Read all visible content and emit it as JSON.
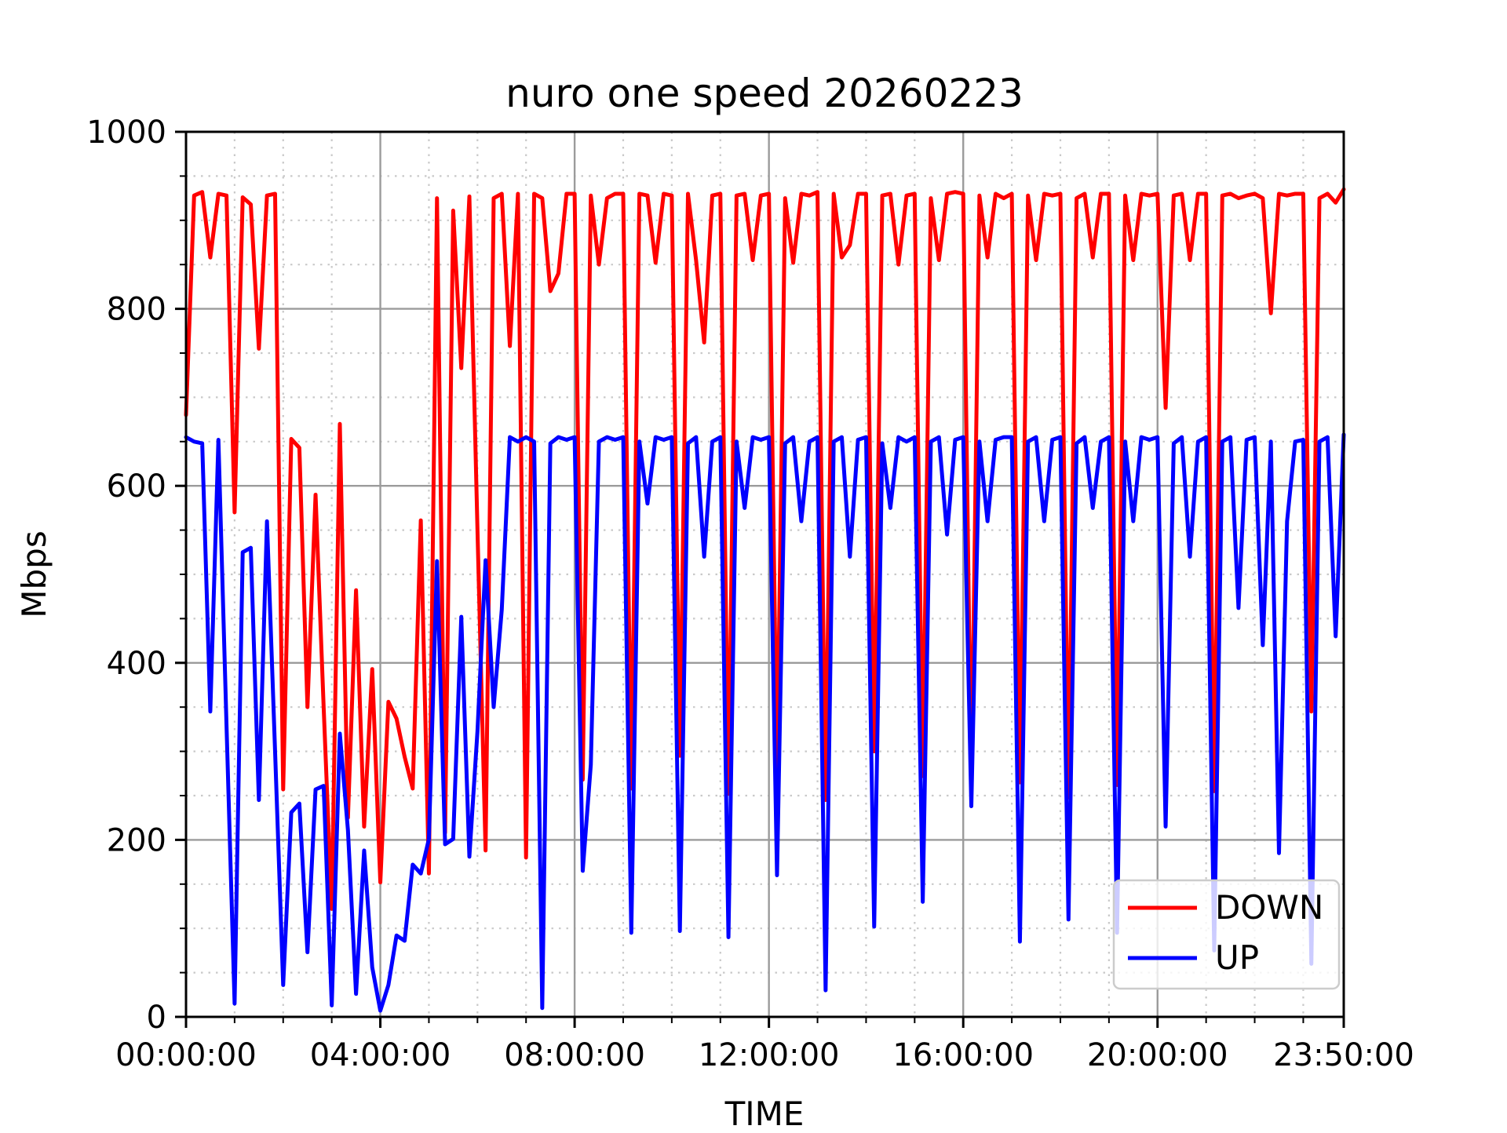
{
  "figure": {
    "title": "nuro one speed 20260223",
    "background": "#ffffff"
  },
  "chart_data": {
    "type": "line",
    "title": "nuro one speed 20260223",
    "xlabel": "TIME",
    "ylabel": "Mbps",
    "xlim_minutes": [
      0,
      1430
    ],
    "ylim": [
      0,
      1000
    ],
    "x_step_minutes": 10,
    "grid": {
      "major": true,
      "minor": true,
      "major_color": "#9b9b9b",
      "minor_color": "#c9c9c9"
    },
    "x_major_ticks": [
      {
        "minutes": 0,
        "label": "00:00:00"
      },
      {
        "minutes": 240,
        "label": "04:00:00"
      },
      {
        "minutes": 480,
        "label": "08:00:00"
      },
      {
        "minutes": 720,
        "label": "12:00:00"
      },
      {
        "minutes": 960,
        "label": "16:00:00"
      },
      {
        "minutes": 1200,
        "label": "20:00:00"
      },
      {
        "minutes": 1430,
        "label": "23:50:00"
      }
    ],
    "x_minor_step_minutes": 60,
    "y_major_ticks": [
      {
        "value": 0,
        "label": "0"
      },
      {
        "value": 200,
        "label": "200"
      },
      {
        "value": 400,
        "label": "400"
      },
      {
        "value": 600,
        "label": "600"
      },
      {
        "value": 800,
        "label": "800"
      },
      {
        "value": 1000,
        "label": "1000"
      }
    ],
    "y_minor_step": 50,
    "legend": {
      "position": "lower right",
      "entries": [
        "DOWN",
        "UP"
      ]
    },
    "series": [
      {
        "name": "DOWN",
        "color": "#ff0000",
        "values": [
          680,
          928,
          932,
          858,
          930,
          928,
          570,
          926,
          918,
          755,
          928,
          930,
          257,
          653,
          643,
          350,
          590,
          350,
          122,
          670,
          225,
          482,
          215,
          393,
          152,
          356,
          337,
          294,
          258,
          561,
          162,
          925,
          208,
          911,
          733,
          927,
          550,
          188,
          925,
          930,
          758,
          930,
          180,
          930,
          925,
          820,
          840,
          930,
          930,
          268,
          928,
          850,
          925,
          930,
          930,
          258,
          930,
          928,
          852,
          930,
          928,
          295,
          930,
          855,
          762,
          928,
          930,
          252,
          928,
          930,
          855,
          928,
          930,
          270,
          925,
          852,
          930,
          928,
          932,
          245,
          930,
          858,
          872,
          930,
          930,
          300,
          928,
          930,
          850,
          928,
          930,
          272,
          925,
          855,
          930,
          932,
          930,
          255,
          928,
          858,
          930,
          925,
          930,
          265,
          928,
          855,
          930,
          928,
          930,
          248,
          925,
          930,
          858,
          930,
          930,
          262,
          928,
          855,
          930,
          928,
          930,
          688,
          928,
          930,
          855,
          930,
          930,
          255,
          928,
          930,
          925,
          928,
          930,
          925,
          795,
          930,
          928,
          930,
          930,
          345,
          925,
          930,
          920,
          935
        ]
      },
      {
        "name": "UP",
        "color": "#0000ff",
        "values": [
          655,
          650,
          648,
          345,
          652,
          330,
          15,
          525,
          530,
          245,
          560,
          300,
          36,
          231,
          241,
          73,
          257,
          261,
          13,
          320,
          211,
          26,
          188,
          56,
          7,
          36,
          92,
          86,
          172,
          162,
          201,
          515,
          195,
          201,
          452,
          181,
          323,
          516,
          350,
          460,
          655,
          650,
          655,
          650,
          10,
          648,
          655,
          652,
          655,
          165,
          285,
          650,
          655,
          652,
          655,
          95,
          650,
          580,
          655,
          652,
          655,
          97,
          648,
          655,
          520,
          650,
          655,
          90,
          650,
          575,
          655,
          652,
          655,
          160,
          648,
          655,
          560,
          650,
          655,
          30,
          650,
          655,
          520,
          652,
          655,
          102,
          648,
          575,
          655,
          650,
          655,
          130,
          650,
          655,
          545,
          652,
          655,
          238,
          650,
          560,
          652,
          655,
          655,
          85,
          650,
          655,
          560,
          652,
          655,
          110,
          648,
          655,
          575,
          650,
          655,
          95,
          650,
          560,
          655,
          652,
          655,
          215,
          648,
          655,
          520,
          650,
          655,
          75,
          650,
          655,
          462,
          652,
          655,
          420,
          650,
          185,
          560,
          650,
          652,
          60,
          650,
          655,
          430,
          658
        ]
      }
    ]
  }
}
